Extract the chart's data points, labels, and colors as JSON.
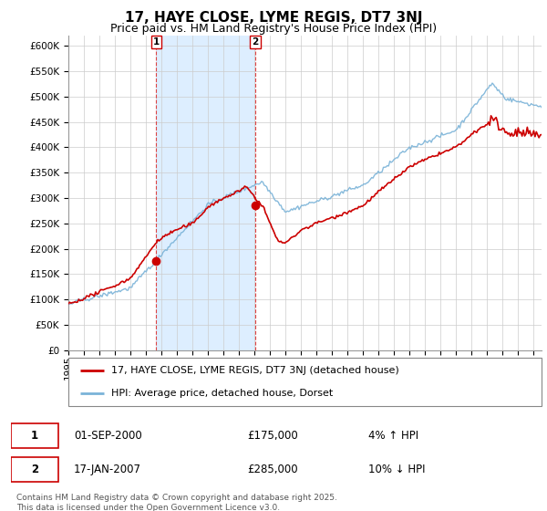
{
  "title": "17, HAYE CLOSE, LYME REGIS, DT7 3NJ",
  "subtitle": "Price paid vs. HM Land Registry's House Price Index (HPI)",
  "ylim": [
    0,
    620000
  ],
  "yticks": [
    0,
    50000,
    100000,
    150000,
    200000,
    250000,
    300000,
    350000,
    400000,
    450000,
    500000,
    550000,
    600000
  ],
  "xlim_start": 1995.0,
  "xlim_end": 2025.5,
  "sale1_date": 2000.67,
  "sale1_price": 175000,
  "sale1_date_str": "01-SEP-2000",
  "sale1_hpi_pct": "4% ↑ HPI",
  "sale2_date": 2007.04,
  "sale2_price": 285000,
  "sale2_date_str": "17-JAN-2007",
  "sale2_hpi_pct": "10% ↓ HPI",
  "line_color_property": "#cc0000",
  "line_color_hpi": "#7ab3d8",
  "shade_color": "#ddeeff",
  "vline_color": "#dd4444",
  "legend_property": "17, HAYE CLOSE, LYME REGIS, DT7 3NJ (detached house)",
  "legend_hpi": "HPI: Average price, detached house, Dorset",
  "footer": "Contains HM Land Registry data © Crown copyright and database right 2025.\nThis data is licensed under the Open Government Licence v3.0.",
  "grid_color": "#cccccc",
  "title_fontsize": 11,
  "subtitle_fontsize": 9,
  "tick_fontsize": 7.5,
  "legend_fontsize": 8
}
